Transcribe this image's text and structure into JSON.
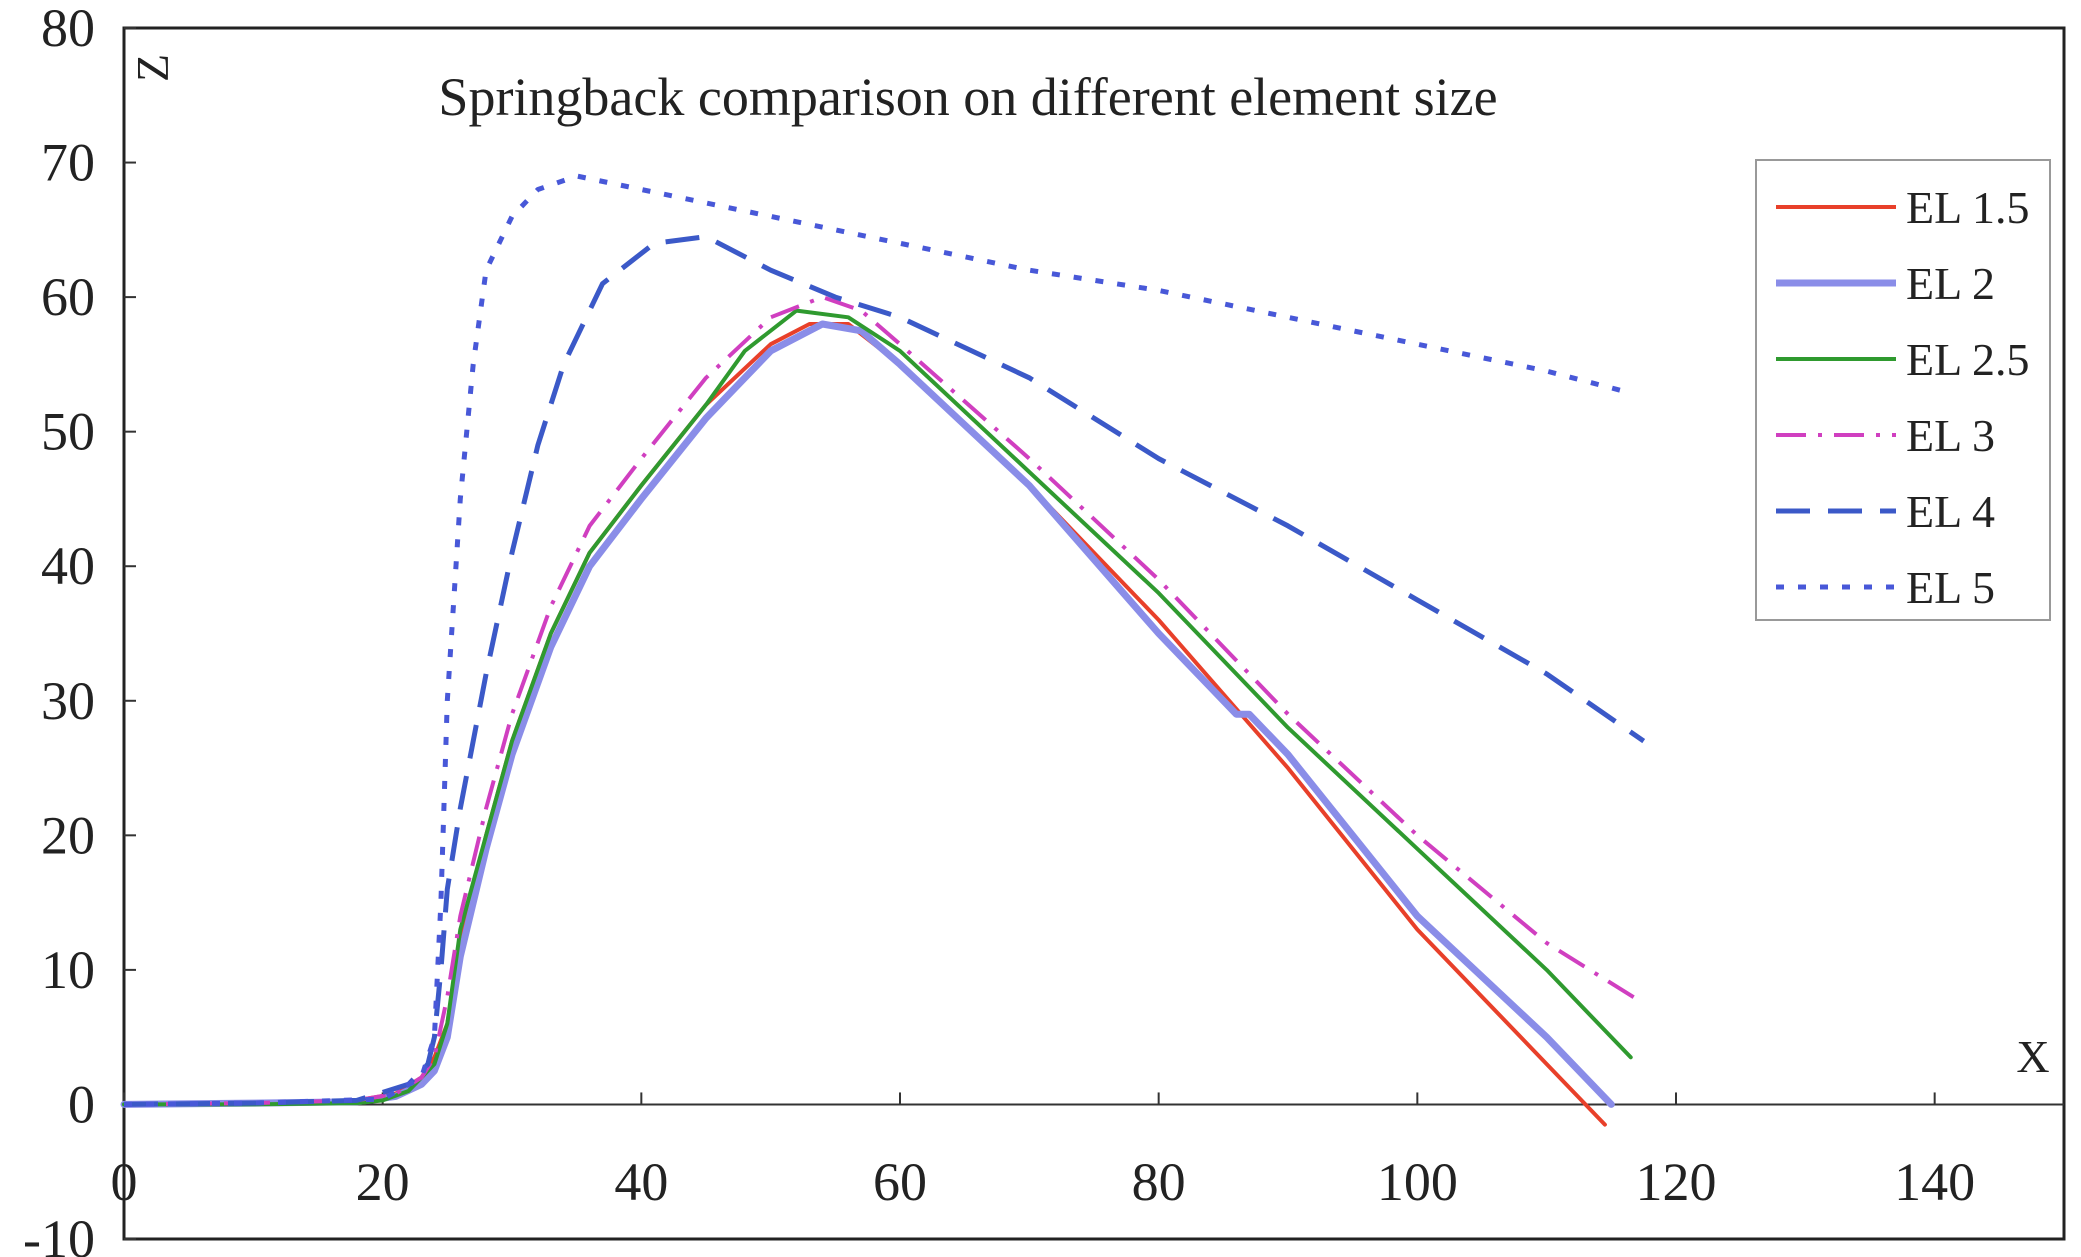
{
  "chart_data": {
    "type": "line",
    "title": "Springback comparison on different element size",
    "xlabel": "X",
    "ylabel": "Z",
    "xlim": [
      0,
      150
    ],
    "ylim": [
      -10,
      80
    ],
    "xticks": [
      0,
      20,
      40,
      60,
      80,
      100,
      120,
      140
    ],
    "yticks": [
      -10,
      0,
      10,
      20,
      30,
      40,
      50,
      60,
      70,
      80
    ],
    "grid": false,
    "legend_position": "top-right",
    "series": [
      {
        "name": "EL 1.5",
        "color": "#e8402a",
        "style": "solid",
        "points": [
          [
            0,
            0
          ],
          [
            10,
            0.1
          ],
          [
            18,
            0.3
          ],
          [
            21,
            0.8
          ],
          [
            23,
            2
          ],
          [
            24,
            3.5
          ],
          [
            25,
            6
          ],
          [
            26,
            12
          ],
          [
            28,
            20
          ],
          [
            30,
            27
          ],
          [
            33,
            35
          ],
          [
            36,
            41
          ],
          [
            40,
            46
          ],
          [
            45,
            52
          ],
          [
            50,
            56.5
          ],
          [
            53,
            58
          ],
          [
            56,
            58
          ],
          [
            60,
            55
          ],
          [
            70,
            46
          ],
          [
            80,
            36
          ],
          [
            90,
            25
          ],
          [
            100,
            13
          ],
          [
            110,
            3
          ],
          [
            114.5,
            -1.5
          ]
        ]
      },
      {
        "name": "EL 2",
        "color": "#8a8de8",
        "style": "solid-thick",
        "points": [
          [
            0,
            0
          ],
          [
            10,
            0.1
          ],
          [
            18,
            0.2
          ],
          [
            21,
            0.6
          ],
          [
            23,
            1.5
          ],
          [
            24,
            2.5
          ],
          [
            25,
            5
          ],
          [
            26,
            11
          ],
          [
            28,
            19
          ],
          [
            30,
            26
          ],
          [
            33,
            34
          ],
          [
            36,
            40
          ],
          [
            40,
            45
          ],
          [
            45,
            51
          ],
          [
            50,
            56
          ],
          [
            54,
            58
          ],
          [
            57,
            57.5
          ],
          [
            60,
            55
          ],
          [
            70,
            46
          ],
          [
            80,
            35
          ],
          [
            86,
            29
          ],
          [
            87,
            29
          ],
          [
            90,
            26
          ],
          [
            100,
            14
          ],
          [
            110,
            5
          ],
          [
            115,
            0
          ]
        ]
      },
      {
        "name": "EL 2.5",
        "color": "#2f9a2f",
        "style": "solid",
        "points": [
          [
            0,
            0
          ],
          [
            10,
            0
          ],
          [
            18,
            0.1
          ],
          [
            20,
            0.3
          ],
          [
            22,
            1
          ],
          [
            24,
            3
          ],
          [
            25,
            6
          ],
          [
            26,
            13
          ],
          [
            28,
            20
          ],
          [
            30,
            27
          ],
          [
            33,
            35
          ],
          [
            36,
            41
          ],
          [
            40,
            46
          ],
          [
            45,
            52
          ],
          [
            48,
            56
          ],
          [
            52,
            59
          ],
          [
            56,
            58.5
          ],
          [
            60,
            56
          ],
          [
            70,
            47
          ],
          [
            80,
            38
          ],
          [
            90,
            28
          ],
          [
            100,
            19
          ],
          [
            110,
            10
          ],
          [
            116.5,
            3.5
          ]
        ]
      },
      {
        "name": "EL 3",
        "color": "#d03fc0",
        "style": "dashdot",
        "points": [
          [
            0,
            0
          ],
          [
            10,
            0.1
          ],
          [
            18,
            0.3
          ],
          [
            21,
            0.8
          ],
          [
            23,
            2
          ],
          [
            24,
            3.5
          ],
          [
            25,
            8
          ],
          [
            26,
            14
          ],
          [
            28,
            22
          ],
          [
            30,
            29
          ],
          [
            33,
            37
          ],
          [
            36,
            43
          ],
          [
            40,
            48
          ],
          [
            45,
            54
          ],
          [
            50,
            58.5
          ],
          [
            54,
            60
          ],
          [
            57,
            59
          ],
          [
            60,
            56.5
          ],
          [
            70,
            48
          ],
          [
            80,
            39
          ],
          [
            90,
            29
          ],
          [
            100,
            20
          ],
          [
            110,
            12
          ],
          [
            117.5,
            7.5
          ]
        ]
      },
      {
        "name": "EL 4",
        "color": "#3b59c8",
        "style": "dashed",
        "points": [
          [
            0,
            0
          ],
          [
            10,
            0.1
          ],
          [
            18,
            0.3
          ],
          [
            22,
            1.5
          ],
          [
            23.5,
            3
          ],
          [
            24,
            5
          ],
          [
            24.5,
            10
          ],
          [
            25,
            16
          ],
          [
            26,
            22
          ],
          [
            28,
            32
          ],
          [
            30,
            41
          ],
          [
            32,
            49
          ],
          [
            34,
            55
          ],
          [
            37,
            61
          ],
          [
            41,
            64
          ],
          [
            45,
            64.5
          ],
          [
            50,
            62
          ],
          [
            55,
            60
          ],
          [
            60,
            58.5
          ],
          [
            70,
            54
          ],
          [
            80,
            48
          ],
          [
            90,
            43
          ],
          [
            100,
            37.5
          ],
          [
            110,
            32
          ],
          [
            117.5,
            27
          ]
        ]
      },
      {
        "name": "EL 5",
        "color": "#4858d8",
        "style": "dotted",
        "points": [
          [
            0,
            0
          ],
          [
            10,
            0.1
          ],
          [
            20,
            0.4
          ],
          [
            23,
            2
          ],
          [
            24,
            5
          ],
          [
            24.5,
            15
          ],
          [
            25,
            30
          ],
          [
            26,
            45
          ],
          [
            27,
            55
          ],
          [
            28,
            62
          ],
          [
            30,
            66
          ],
          [
            32,
            68
          ],
          [
            35,
            69
          ],
          [
            40,
            68
          ],
          [
            50,
            66
          ],
          [
            60,
            64
          ],
          [
            70,
            62
          ],
          [
            80,
            60.5
          ],
          [
            90,
            58.5
          ],
          [
            100,
            56.5
          ],
          [
            110,
            54.5
          ],
          [
            116,
            53
          ]
        ]
      }
    ]
  }
}
